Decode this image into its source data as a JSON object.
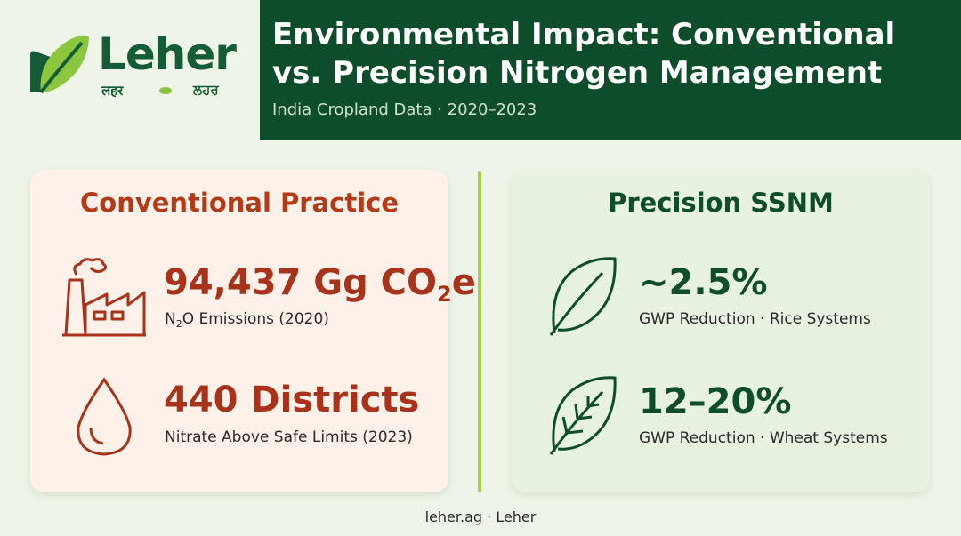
{
  "brand": {
    "name": "Leher",
    "script_hindi": "लहर",
    "script_punjabi": "ਲਹਰ",
    "colors": {
      "dark_green": "#0e4d2c",
      "lime": "#8cc63f",
      "rust": "#a8321a"
    }
  },
  "header": {
    "title": "Environmental Impact: Conventional vs. Precision Nitrogen Management",
    "subtitle": "India Cropland Data · 2020–2023"
  },
  "conventional": {
    "title": "Conventional Practice",
    "stats": [
      {
        "icon": "factory-icon",
        "value_prefix": "94,437 Gg CO",
        "value_sub": "2",
        "value_suffix": "e",
        "label_prefix": "N",
        "label_sub": "2",
        "label_suffix": "O Emissions (2020)"
      },
      {
        "icon": "water-drop-icon",
        "value": "440 Districts",
        "label": "Nitrate Above Safe Limits (2023)"
      }
    ]
  },
  "precision": {
    "title": "Precision SSNM",
    "stats": [
      {
        "icon": "leaf-icon",
        "value": "~2.5%",
        "label": "GWP Reduction · Rice Systems"
      },
      {
        "icon": "leaf-veined-icon",
        "value": "12–20%",
        "label": "GWP Reduction · Wheat Systems"
      }
    ]
  },
  "footer": {
    "text": "leher.ag · Leher"
  }
}
